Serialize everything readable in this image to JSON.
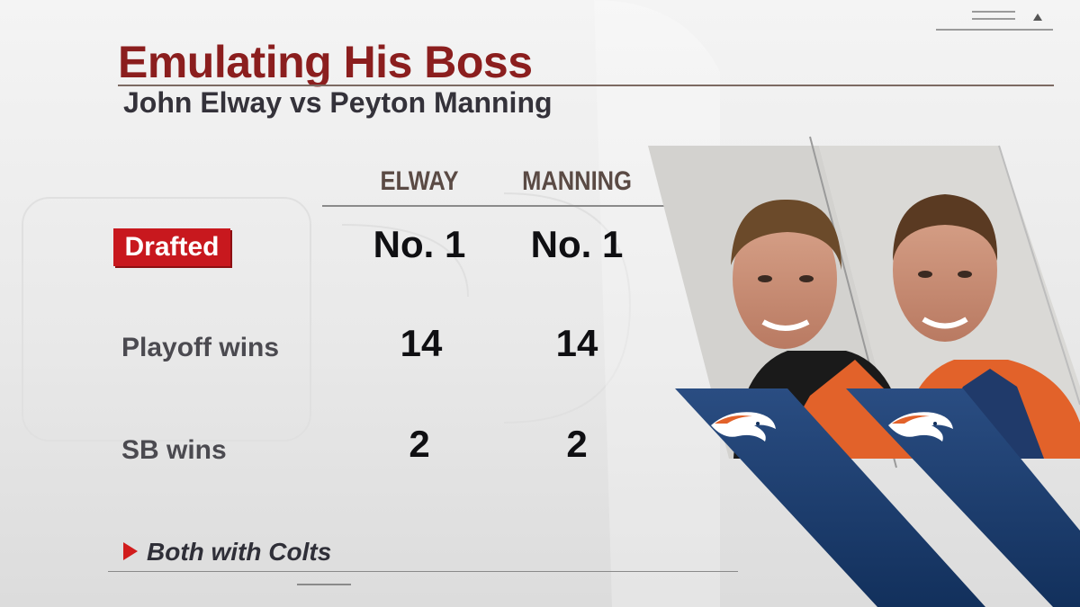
{
  "header": {
    "title": "Emulating His Boss",
    "subtitle": "John Elway vs Peyton Manning"
  },
  "columns": {
    "elway": "ELWAY",
    "manning": "MANNING"
  },
  "rows": [
    {
      "label": "Drafted",
      "elway": "No. 1",
      "manning": "No. 1",
      "highlight": true
    },
    {
      "label": "Playoff wins",
      "elway": "14",
      "manning": "14",
      "highlight": false
    },
    {
      "label": "SB wins",
      "elway": "2",
      "manning": "2",
      "highlight": false
    }
  ],
  "footnote": "Both with Colts",
  "players": [
    {
      "name_icon": "elway-portrait"
    },
    {
      "name_icon": "manning-portrait"
    }
  ],
  "colors": {
    "title": "#8b1e1e",
    "badge": "#c8181e",
    "broncos_navy": "#1b3a6b",
    "broncos_orange": "#e2622a"
  }
}
